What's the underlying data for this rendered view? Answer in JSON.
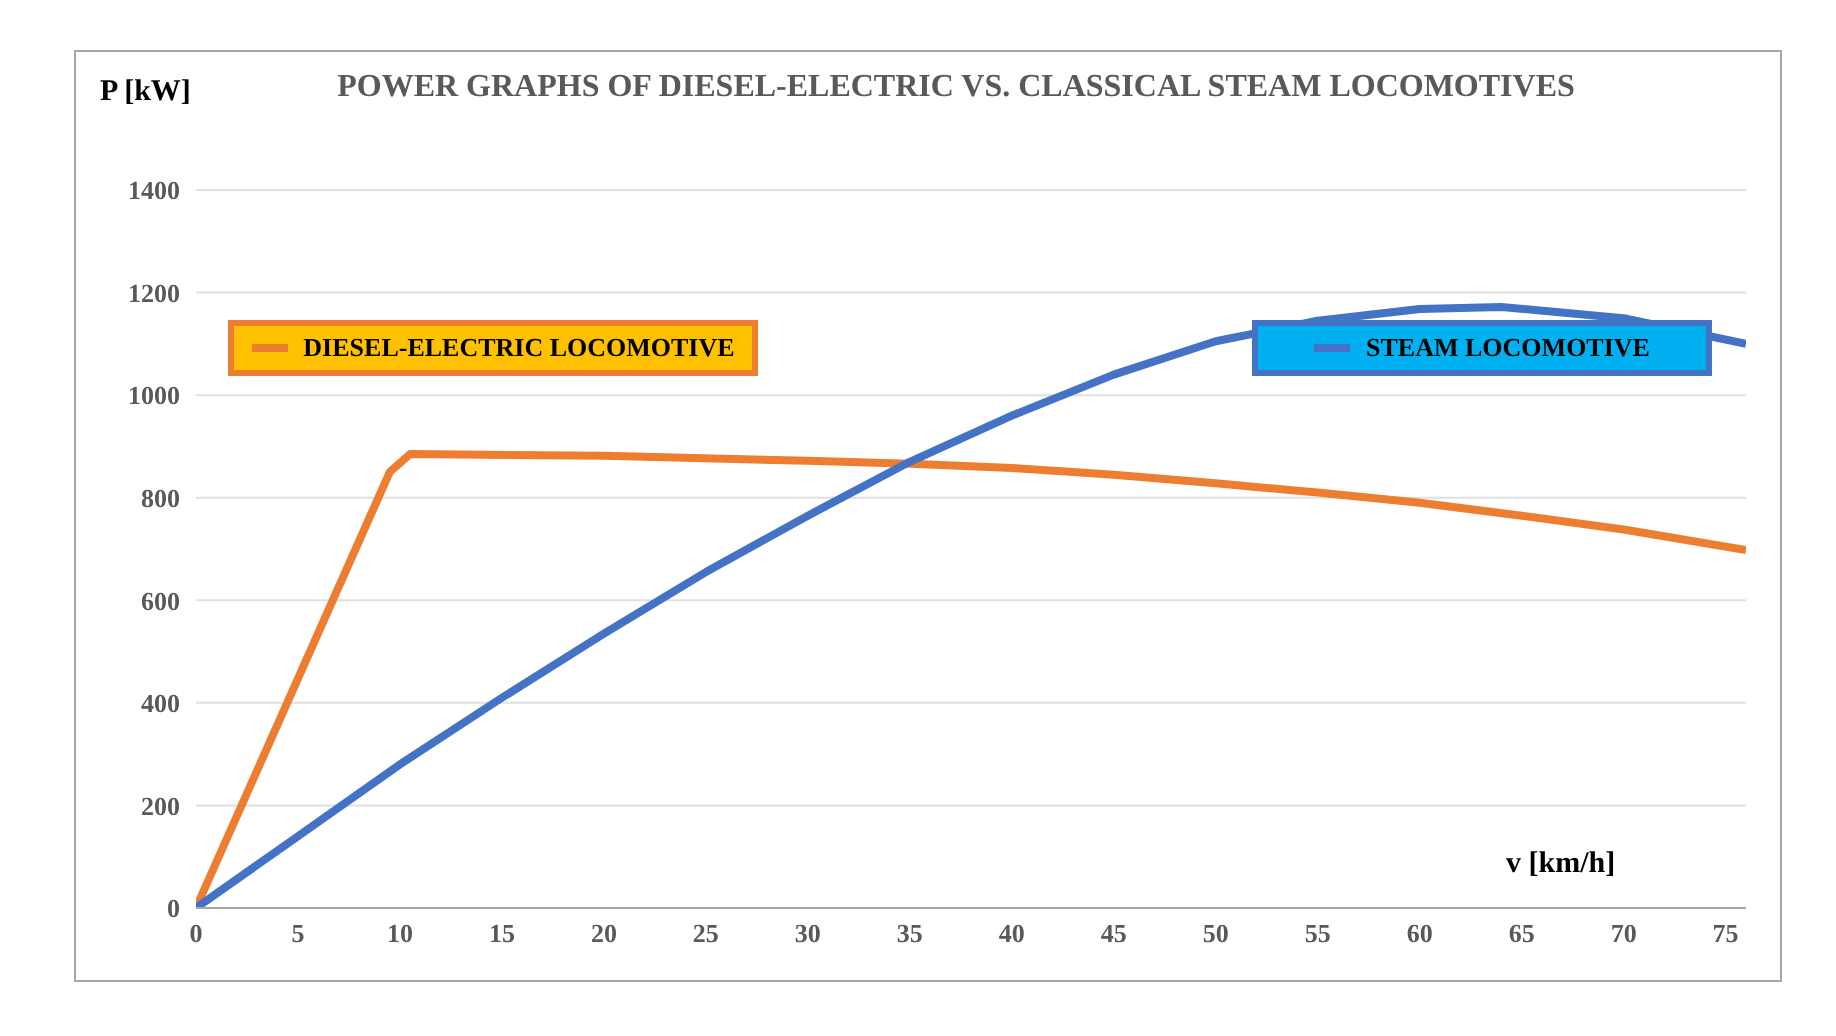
{
  "chart_data": {
    "type": "line",
    "title": "POWER GRAPHS OF DIESEL-ELECTRIC VS. CLASSICAL STEAM LOCOMOTIVES",
    "xlabel": "v [km/h]",
    "ylabel": "P [kW]",
    "xlim": [
      0,
      76
    ],
    "xticks": [
      0,
      5,
      10,
      15,
      20,
      25,
      30,
      35,
      40,
      45,
      50,
      55,
      60,
      65,
      70,
      75
    ],
    "ylim": [
      0,
      1400
    ],
    "yticks": [
      0,
      200,
      400,
      600,
      800,
      1000,
      1200,
      1400
    ],
    "grid": "y",
    "legend": "top",
    "marker": "none",
    "line_style": "solid",
    "series": [
      {
        "name": "DIESEL-ELECTRIC LOCOMOTIVE",
        "color": "#ed7d31",
        "x": [
          0,
          9.5,
          10.5,
          20,
          30,
          35,
          40,
          45,
          50,
          55,
          60,
          65,
          70,
          76
        ],
        "values": [
          0,
          850,
          885,
          882,
          872,
          866,
          858,
          845,
          828,
          810,
          790,
          765,
          738,
          698
        ]
      },
      {
        "name": "STEAM LOCOMOTIVE",
        "color": "#4472c4",
        "x": [
          0,
          5,
          10,
          15,
          20,
          25,
          30,
          35,
          40,
          45,
          50,
          55,
          60,
          64,
          70,
          76
        ],
        "values": [
          0,
          140,
          280,
          410,
          535,
          655,
          765,
          870,
          960,
          1040,
          1105,
          1145,
          1168,
          1172,
          1150,
          1100
        ]
      }
    ]
  }
}
